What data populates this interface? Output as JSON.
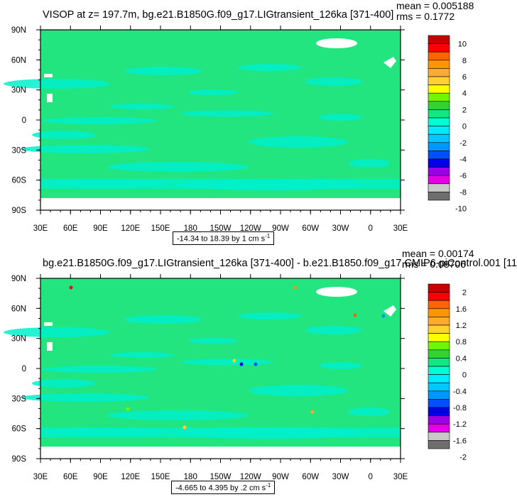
{
  "palette": [
    "#6e6e6e",
    "#c8c8c8",
    "#e600e6",
    "#9b00e6",
    "#0000e6",
    "#0050ff",
    "#0096ff",
    "#00c8ff",
    "#00ebff",
    "#00ffd2",
    "#14e682",
    "#32d232",
    "#73f500",
    "#ffff00",
    "#ffd232",
    "#ffaa32",
    "#ff9600",
    "#ff6400",
    "#ff0000",
    "#c80000"
  ],
  "ocean_color": "#22e57f",
  "ocean_light_color": "#00f0cc",
  "land_color": "#ffffff",
  "lon_labels": [
    "30E",
    "60E",
    "90E",
    "120E",
    "150E",
    "180",
    "150W",
    "120W",
    "90W",
    "60W",
    "30W",
    "0",
    "30E"
  ],
  "lat_labels": [
    "90N",
    "60N",
    "30N",
    "0",
    "30S",
    "60S",
    "90S"
  ],
  "panels": [
    {
      "title": "VISOP at z= 197.7m, bg.e21.B1850G.f09_g17.LIGtransient_126ka [371-400]",
      "stat_mean": "mean = 0.005188",
      "stat_rms": "rms = 0.1772",
      "range_text": "-14.34 to 18.39 by 1 cm s",
      "range_unit_exp": "-1",
      "colorbar_labels": [
        "10",
        "8",
        "6",
        "4",
        "2",
        "0",
        "-2",
        "-4",
        "-6",
        "-8",
        "-10"
      ]
    },
    {
      "title": "bg.e21.B1850G.f09_g17.LIGtransient_126ka [371-400] - b.e21.B1850.f09_g17.CMIP6-piControl.001 [11",
      "stat_mean": "mean = 0.00174",
      "stat_rms": "rms = 0.08706",
      "range_text": "-4.665 to 4.395 by .2 cm s",
      "range_unit_exp": "-1",
      "colorbar_labels": [
        "2",
        "1.6",
        "1.2",
        "0.8",
        "0.4",
        "0",
        "-0.4",
        "-0.8",
        "-1.2",
        "-1.6",
        "-2"
      ]
    }
  ]
}
